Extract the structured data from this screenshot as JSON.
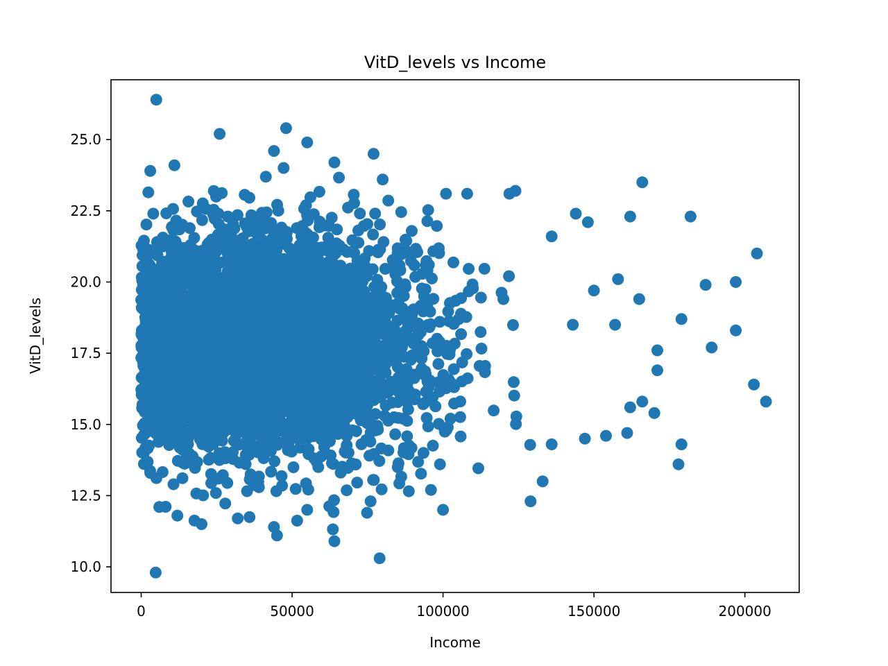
{
  "chart_data": {
    "type": "scatter",
    "title": "VitD_levels vs Income",
    "xlabel": "Income",
    "ylabel": "VitD_levels",
    "xlim": [
      -10000,
      218000
    ],
    "ylim": [
      9.1,
      27.1
    ],
    "xticks": [
      0,
      50000,
      100000,
      150000,
      200000
    ],
    "xtick_labels": [
      "0",
      "50000",
      "100000",
      "150000",
      "200000"
    ],
    "yticks": [
      10.0,
      12.5,
      15.0,
      17.5,
      20.0,
      22.5,
      25.0
    ],
    "ytick_labels": [
      "10.0",
      "12.5",
      "15.0",
      "17.5",
      "20.0",
      "22.5",
      "25.0"
    ],
    "grid": false,
    "marker_color": "#1f77b4",
    "series": [
      {
        "points": [
          [
            5000,
            26.4
          ],
          [
            4800,
            9.8
          ],
          [
            26000,
            25.2
          ],
          [
            48000,
            25.4
          ],
          [
            55000,
            24.9
          ],
          [
            3000,
            23.9
          ],
          [
            11000,
            24.1
          ],
          [
            44000,
            24.6
          ],
          [
            64000,
            24.2
          ],
          [
            77000,
            24.5
          ],
          [
            80000,
            23.6
          ],
          [
            166000,
            23.5
          ],
          [
            204000,
            21.0
          ],
          [
            207000,
            15.8
          ],
          [
            203000,
            16.4
          ],
          [
            197000,
            18.3
          ],
          [
            197000,
            20.0
          ],
          [
            187000,
            19.9
          ],
          [
            189000,
            17.7
          ],
          [
            182000,
            22.3
          ],
          [
            179000,
            18.7
          ],
          [
            179000,
            14.3
          ],
          [
            178000,
            13.6
          ],
          [
            171000,
            17.6
          ],
          [
            171000,
            16.9
          ],
          [
            170000,
            15.4
          ],
          [
            166000,
            15.8
          ],
          [
            165000,
            19.4
          ],
          [
            162000,
            22.3
          ],
          [
            162000,
            15.6
          ],
          [
            161000,
            14.7
          ],
          [
            158000,
            20.1
          ],
          [
            157000,
            18.5
          ],
          [
            154000,
            14.6
          ],
          [
            150000,
            19.7
          ],
          [
            148000,
            22.1
          ],
          [
            147000,
            14.5
          ],
          [
            144000,
            22.4
          ],
          [
            143000,
            18.5
          ],
          [
            136000,
            21.6
          ],
          [
            136000,
            14.3
          ],
          [
            133000,
            13.0
          ],
          [
            129000,
            12.3
          ],
          [
            124000,
            23.2
          ],
          [
            122000,
            23.1
          ],
          [
            120000,
            19.4
          ],
          [
            108000,
            23.1
          ],
          [
            101000,
            23.1
          ],
          [
            100000,
            12.0
          ],
          [
            99000,
            13.6
          ],
          [
            96000,
            12.7
          ],
          [
            85000,
            13.5
          ],
          [
            79000,
            10.3
          ],
          [
            76000,
            12.3
          ],
          [
            64000,
            10.9
          ],
          [
            55000,
            12.0
          ],
          [
            45000,
            11.1
          ],
          [
            44000,
            11.4
          ],
          [
            32000,
            11.7
          ],
          [
            20000,
            11.5
          ],
          [
            12000,
            11.8
          ],
          [
            6000,
            12.1
          ],
          [
            3000,
            13.3
          ],
          [
            2000,
            15.0
          ],
          [
            1000,
            17.2
          ],
          [
            2000,
            20.2
          ],
          [
            4000,
            22.4
          ]
        ]
      }
    ],
    "random_cloud": {
      "count": 4200,
      "seed": 7,
      "x_mean": 40000,
      "x_sd": 27000,
      "y_mean": 17.9,
      "y_sd": 1.9
    }
  }
}
